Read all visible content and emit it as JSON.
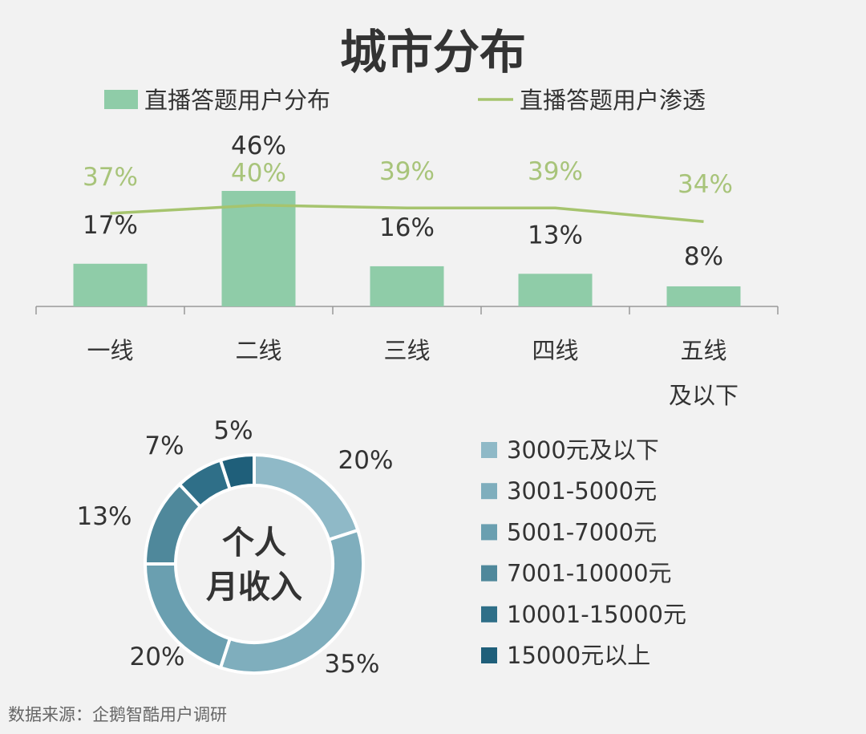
{
  "colors": {
    "bar": "#8fcca8",
    "line": "#a6c46e",
    "line_label": "#a8c47a",
    "axis": "#999999",
    "text": "#333333",
    "background": "#f2f2f2",
    "donut": [
      "#8fb9c7",
      "#7faebd",
      "#6a9fb0",
      "#4f889b",
      "#2f6f88",
      "#1f5f7a"
    ]
  },
  "source": "数据来源：企鹅智酷用户调研",
  "chart_data": [
    {
      "type": "bar",
      "title": "城市分布",
      "categories": [
        "一线",
        "二线",
        "三线",
        "四线",
        "五线\n及以下"
      ],
      "series": [
        {
          "name": "直播答题用户分布",
          "kind": "bar",
          "values": [
            17,
            46,
            16,
            13,
            8
          ],
          "labels": [
            "17%",
            "46%",
            "16%",
            "13%",
            "8%"
          ]
        },
        {
          "name": "直播答题用户渗透",
          "kind": "line",
          "values": [
            37,
            40,
            39,
            39,
            34
          ],
          "labels": [
            "37%",
            "40%",
            "39%",
            "39%",
            "34%"
          ]
        }
      ],
      "legend_position": "top",
      "grid": false
    },
    {
      "type": "pie",
      "subtype": "donut",
      "center_label": [
        "个人",
        "月收入"
      ],
      "slices": [
        {
          "name": "3000元及以下",
          "value": 20,
          "label": "20%"
        },
        {
          "name": "3001-5000元",
          "value": 35,
          "label": "35%"
        },
        {
          "name": "5001-7000元",
          "value": 20,
          "label": "20%"
        },
        {
          "name": "7001-10000元",
          "value": 13,
          "label": "13%"
        },
        {
          "name": "10001-15000元",
          "value": 7,
          "label": "7%"
        },
        {
          "name": "15000元以上",
          "value": 5,
          "label": "5%"
        }
      ],
      "legend_position": "right"
    }
  ]
}
